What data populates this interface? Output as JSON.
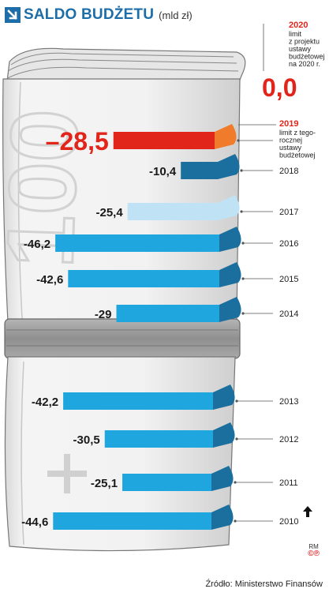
{
  "header": {
    "title": "SALDO BUDŻETU",
    "unit": "(mld zł)"
  },
  "bill_text": "100",
  "colors": {
    "blue": "#1fa6df",
    "blue_dark": "#1b6f9e",
    "blue_light": "#bfe3f5",
    "red": "#e1251b",
    "orange": "#f07b2b",
    "roll": "#f1f1f1",
    "band": "#9b9b9b",
    "title": "#1d6ea8"
  },
  "chart_data": {
    "type": "bar",
    "orientation": "horizontal",
    "title": "SALDO BUDŻETU",
    "unit": "mld zł",
    "categories": [
      "2020",
      "2019",
      "2018",
      "2017",
      "2016",
      "2015",
      "2014",
      "2013",
      "2012",
      "2011",
      "2010"
    ],
    "values": [
      0.0,
      -28.5,
      -10.4,
      -25.4,
      -46.2,
      -42.6,
      -29,
      -42.2,
      -30.5,
      -25.1,
      -44.6
    ],
    "value_labels": [
      "0,0",
      "–28,5",
      "-10,4",
      "-25,4",
      "-46,2",
      "-42,6",
      "-29",
      "-42,2",
      "-30,5",
      "-25,1",
      "-44,6"
    ],
    "highlight": [
      {
        "year": "2020",
        "note": "limit z projektu ustawy budżetowej na 2020 r.",
        "color": "#e1251b"
      },
      {
        "year": "2019",
        "note": "limit z tego-rocznej ustawy budżetowej",
        "color": "#e1251b"
      }
    ]
  },
  "notes": {
    "y2020_lines": [
      "limit",
      "z projektu",
      "ustawy",
      "budżetowej",
      "na 2020 r."
    ],
    "y2019_lines": [
      "limit z tego-",
      "rocznej",
      "ustawy",
      "budżetowej"
    ]
  },
  "credit": {
    "initials": "RM",
    "mark": "©℗"
  },
  "source": "Źródło: Ministerstwo Finansów"
}
